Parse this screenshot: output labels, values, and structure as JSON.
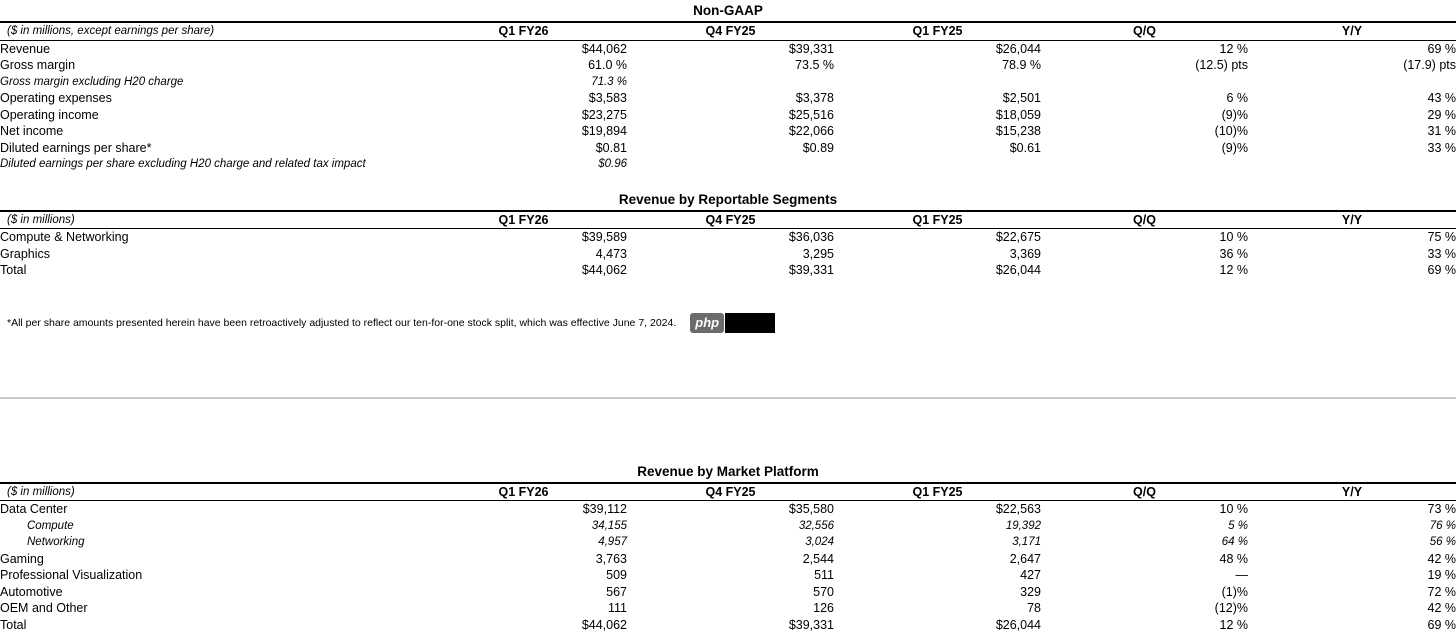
{
  "page": {
    "background": "#ffffff"
  },
  "colors": {
    "text": "#000000",
    "rule": "#000000",
    "divider": "#c9c9c9",
    "badge_background": "#6b6b6b",
    "badge_text": "#ffffff",
    "redaction": "#000000"
  },
  "badge": {
    "label": "php"
  },
  "footnote": {
    "text": "*All per share amounts presented herein have been retroactively adjusted to reflect our ten-for-one stock split, which was effective June 7, 2024."
  },
  "tables": [
    {
      "title": "Non-GAAP",
      "unit_label": "($ in millions, except earnings per share)",
      "columns": [
        "Q1 FY26",
        "Q4 FY25",
        "Q1 FY25",
        "Q/Q",
        "Y/Y"
      ],
      "rows": [
        {
          "label": "Revenue",
          "style": "normal",
          "values": [
            "$44,062",
            "$39,331",
            "$26,044",
            "12 %",
            "69 %"
          ]
        },
        {
          "label": "Gross margin",
          "style": "normal",
          "values": [
            "61.0 %",
            "73.5 %",
            "78.9 %",
            "(12.5) pts",
            "(17.9) pts"
          ]
        },
        {
          "label": "Gross margin excluding H20 charge",
          "style": "italic",
          "values": [
            "71.3 %",
            "",
            "",
            "",
            ""
          ]
        },
        {
          "label": "Operating expenses",
          "style": "normal",
          "values": [
            "$3,583",
            "$3,378",
            "$2,501",
            "6 %",
            "43 %"
          ]
        },
        {
          "label": "Operating income",
          "style": "normal",
          "values": [
            "$23,275",
            "$25,516",
            "$18,059",
            "(9)%",
            "29 %"
          ]
        },
        {
          "label": "Net income",
          "style": "normal",
          "values": [
            "$19,894",
            "$22,066",
            "$15,238",
            "(10)%",
            "31 %"
          ]
        },
        {
          "label": "Diluted earnings per share*",
          "style": "normal",
          "values": [
            "$0.81",
            "$0.89",
            "$0.61",
            "(9)%",
            "33 %"
          ]
        },
        {
          "label": "Diluted earnings per share excluding H20 charge and related tax impact",
          "style": "italic",
          "values": [
            "$0.96",
            "",
            "",
            "",
            ""
          ]
        }
      ]
    },
    {
      "title": "Revenue by Reportable Segments",
      "unit_label": "($ in millions)",
      "columns": [
        "Q1 FY26",
        "Q4 FY25",
        "Q1 FY25",
        "Q/Q",
        "Y/Y"
      ],
      "rows": [
        {
          "label": "Compute & Networking",
          "style": "normal",
          "values": [
            "$39,589",
            "$36,036",
            "$22,675",
            "10 %",
            "75 %"
          ]
        },
        {
          "label": "Graphics",
          "style": "normal",
          "values": [
            "4,473",
            "3,295",
            "3,369",
            "36 %",
            "33 %"
          ]
        },
        {
          "label": "Total",
          "style": "normal",
          "values": [
            "$44,062",
            "$39,331",
            "$26,044",
            "12 %",
            "69 %"
          ]
        }
      ]
    },
    {
      "title": "Revenue by Market Platform",
      "unit_label": "($ in millions)",
      "columns": [
        "Q1 FY26",
        "Q4 FY25",
        "Q1 FY25",
        "Q/Q",
        "Y/Y"
      ],
      "rows": [
        {
          "label": "Data Center",
          "style": "normal",
          "values": [
            "$39,112",
            "$35,580",
            "$22,563",
            "10 %",
            "73 %"
          ]
        },
        {
          "label": "Compute",
          "style": "italic-indent",
          "values": [
            "34,155",
            "32,556",
            "19,392",
            "5 %",
            "76 %"
          ]
        },
        {
          "label": "Networking",
          "style": "italic-indent",
          "values": [
            "4,957",
            "3,024",
            "3,171",
            "64 %",
            "56 %"
          ]
        },
        {
          "label": "Gaming",
          "style": "normal",
          "values": [
            "3,763",
            "2,544",
            "2,647",
            "48 %",
            "42 %"
          ]
        },
        {
          "label": "Professional Visualization",
          "style": "normal",
          "values": [
            "509",
            "511",
            "427",
            "—",
            "19 %"
          ]
        },
        {
          "label": "Automotive",
          "style": "normal",
          "values": [
            "567",
            "570",
            "329",
            "(1)%",
            "72 %"
          ]
        },
        {
          "label": "OEM and Other",
          "style": "normal",
          "values": [
            "111",
            "126",
            "78",
            "(12)%",
            "42 %"
          ]
        },
        {
          "label": "Total",
          "style": "normal",
          "values": [
            "$44,062",
            "$39,331",
            "$26,044",
            "12 %",
            "69 %"
          ]
        }
      ]
    }
  ]
}
